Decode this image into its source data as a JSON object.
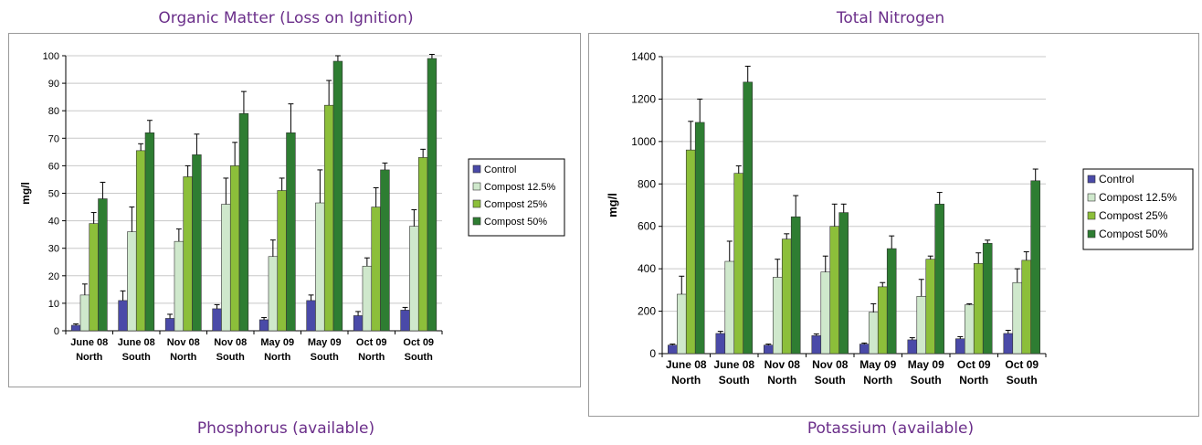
{
  "titles": {
    "top_left": "Organic Matter (Loss on Ignition)",
    "top_right": "Total Nitrogen",
    "bottom_left": "Phosphorus (available)",
    "bottom_right": "Potassium (available)"
  },
  "colors": {
    "Control": "#4a4aa8",
    "Compost 12.5%": "#cfe8cc",
    "Compost 25%": "#8cbf3a",
    "Compost 50%": "#2e7d32",
    "title": "#6b2f8a"
  },
  "chart_data": [
    {
      "type": "bar",
      "title": "Organic Matter (Loss on Ignition)",
      "ylabel": "mg/l",
      "ylim": [
        0,
        100
      ],
      "yticks": [
        0,
        10,
        20,
        30,
        40,
        50,
        60,
        70,
        80,
        90,
        100
      ],
      "grid": true,
      "legend_position": "right",
      "categories": [
        [
          "June 08",
          "North"
        ],
        [
          "June 08",
          "South"
        ],
        [
          "Nov 08",
          "North"
        ],
        [
          "Nov 08",
          "South"
        ],
        [
          "May 09",
          "North"
        ],
        [
          "May 09",
          "South"
        ],
        [
          "Oct 09",
          "North"
        ],
        [
          "Oct 09",
          "South"
        ]
      ],
      "series": [
        {
          "name": "Control",
          "values": [
            2,
            11,
            4.5,
            8,
            4,
            11,
            5.5,
            7.5
          ],
          "errors": [
            0.5,
            3.5,
            1.5,
            1.5,
            0.8,
            2,
            1.5,
            1
          ]
        },
        {
          "name": "Compost 12.5%",
          "values": [
            13,
            36,
            32.5,
            46,
            27,
            46.5,
            23.5,
            38
          ],
          "errors": [
            4,
            9,
            4.5,
            9.5,
            6,
            12,
            3,
            6
          ]
        },
        {
          "name": "Compost 25%",
          "values": [
            39,
            65.5,
            56,
            60,
            51,
            82,
            45,
            63
          ],
          "errors": [
            4,
            2.5,
            4,
            8.5,
            4.5,
            9,
            7,
            3
          ]
        },
        {
          "name": "Compost 50%",
          "values": [
            48,
            72,
            64,
            79,
            72,
            98,
            58.5,
            99
          ],
          "errors": [
            6,
            4.5,
            7.5,
            8,
            10.5,
            2,
            2.5,
            1.5
          ]
        }
      ]
    },
    {
      "type": "bar",
      "title": "Total Nitrogen",
      "ylabel": "mg/l",
      "ylim": [
        0,
        1400
      ],
      "yticks": [
        0,
        200,
        400,
        600,
        800,
        1000,
        1200,
        1400
      ],
      "grid": true,
      "legend_position": "right",
      "categories": [
        [
          "June 08",
          "North"
        ],
        [
          "June 08",
          "South"
        ],
        [
          "Nov 08",
          "North"
        ],
        [
          "Nov 08",
          "South"
        ],
        [
          "May 09",
          "North"
        ],
        [
          "May 09",
          "South"
        ],
        [
          "Oct 09",
          "North"
        ],
        [
          "Oct 09",
          "South"
        ]
      ],
      "series": [
        {
          "name": "Control",
          "values": [
            40,
            95,
            40,
            85,
            45,
            65,
            70,
            95
          ],
          "errors": [
            5,
            10,
            5,
            8,
            5,
            10,
            10,
            15
          ]
        },
        {
          "name": "Compost 12.5%",
          "values": [
            280,
            435,
            360,
            385,
            195,
            270,
            230,
            335
          ],
          "errors": [
            85,
            95,
            85,
            75,
            40,
            80,
            5,
            65
          ]
        },
        {
          "name": "Compost 25%",
          "values": [
            960,
            850,
            540,
            600,
            315,
            445,
            425,
            440
          ],
          "errors": [
            135,
            35,
            25,
            105,
            20,
            15,
            50,
            40
          ]
        },
        {
          "name": "Compost 50%",
          "values": [
            1090,
            1280,
            645,
            665,
            495,
            705,
            520,
            815
          ],
          "errors": [
            110,
            75,
            100,
            40,
            60,
            55,
            15,
            55
          ]
        }
      ]
    }
  ]
}
